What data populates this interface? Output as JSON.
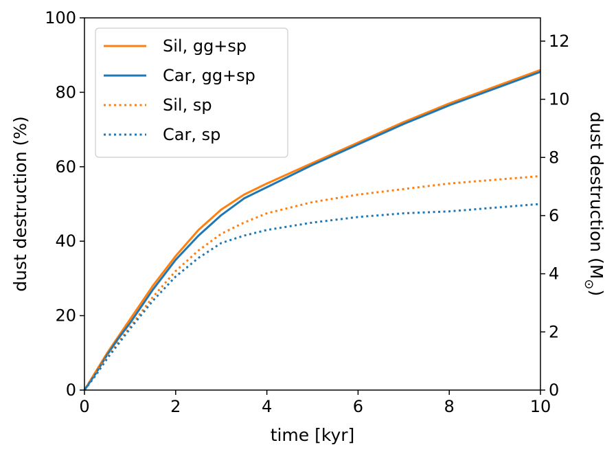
{
  "chart_data": {
    "type": "line",
    "xlabel": "time [kyr]",
    "ylabel": "dust destruction (%)",
    "ylabel_right": "dust destruction (M",
    "ylabel_right_subscript": "⊙",
    "ylabel_right_close": ")",
    "xlim": [
      0,
      10
    ],
    "ylim": [
      0,
      100
    ],
    "ylim_right": [
      0,
      12.8
    ],
    "x_ticks": [
      0,
      2,
      4,
      6,
      8,
      10
    ],
    "y_ticks": [
      0,
      20,
      40,
      60,
      80,
      100
    ],
    "y_ticks_right": [
      0,
      2,
      4,
      6,
      8,
      10,
      12
    ],
    "x_tick_labels": [
      "0",
      "2",
      "4",
      "6",
      "8",
      "10"
    ],
    "y_tick_labels": [
      "0",
      "20",
      "40",
      "60",
      "80",
      "100"
    ],
    "y_tick_labels_right": [
      "0",
      "2",
      "4",
      "6",
      "8",
      "10",
      "12"
    ],
    "grid": false,
    "legend_position": "top-left",
    "series": [
      {
        "name": "Sil, gg+sp",
        "color": "#ff7f0e",
        "style": "solid",
        "x": [
          0,
          0.25,
          0.5,
          0.75,
          1,
          1.5,
          2,
          2.5,
          3,
          3.5,
          4,
          5,
          6,
          7,
          8,
          9,
          10
        ],
        "y": [
          0,
          5,
          10,
          14.5,
          19,
          28,
          36,
          43,
          48.5,
          52.5,
          55.5,
          61,
          66.5,
          72,
          77,
          81.5,
          86
        ]
      },
      {
        "name": "Car, gg+sp",
        "color": "#1f77b4",
        "style": "solid",
        "x": [
          0,
          0.25,
          0.5,
          0.75,
          1,
          1.5,
          2,
          2.5,
          3,
          3.5,
          4,
          5,
          6,
          7,
          8,
          9,
          10
        ],
        "y": [
          0,
          4.5,
          9.5,
          14,
          18,
          27,
          35,
          41.5,
          47,
          51.5,
          54.5,
          60.5,
          66,
          71.5,
          76.5,
          81,
          85.5
        ]
      },
      {
        "name": "Sil, sp",
        "color": "#ff7f0e",
        "style": "dotted",
        "x": [
          0,
          0.25,
          0.5,
          0.75,
          1,
          1.5,
          2,
          2.5,
          3,
          3.5,
          4,
          5,
          6,
          7,
          8,
          9,
          10
        ],
        "y": [
          0,
          4.5,
          9,
          13,
          17,
          25,
          32,
          37.5,
          42,
          45,
          47.5,
          50.5,
          52.5,
          54,
          55.5,
          56.5,
          57.5
        ]
      },
      {
        "name": "Car, sp",
        "color": "#1f77b4",
        "style": "dotted",
        "x": [
          0,
          0.25,
          0.5,
          0.75,
          1,
          1.5,
          2,
          2.5,
          3,
          3.5,
          4,
          5,
          6,
          7,
          8,
          9,
          10
        ],
        "y": [
          0,
          4,
          8.5,
          12.5,
          16.5,
          24,
          30.5,
          35.5,
          39.5,
          41.5,
          43,
          45,
          46.5,
          47.5,
          48,
          49,
          50
        ]
      }
    ]
  }
}
